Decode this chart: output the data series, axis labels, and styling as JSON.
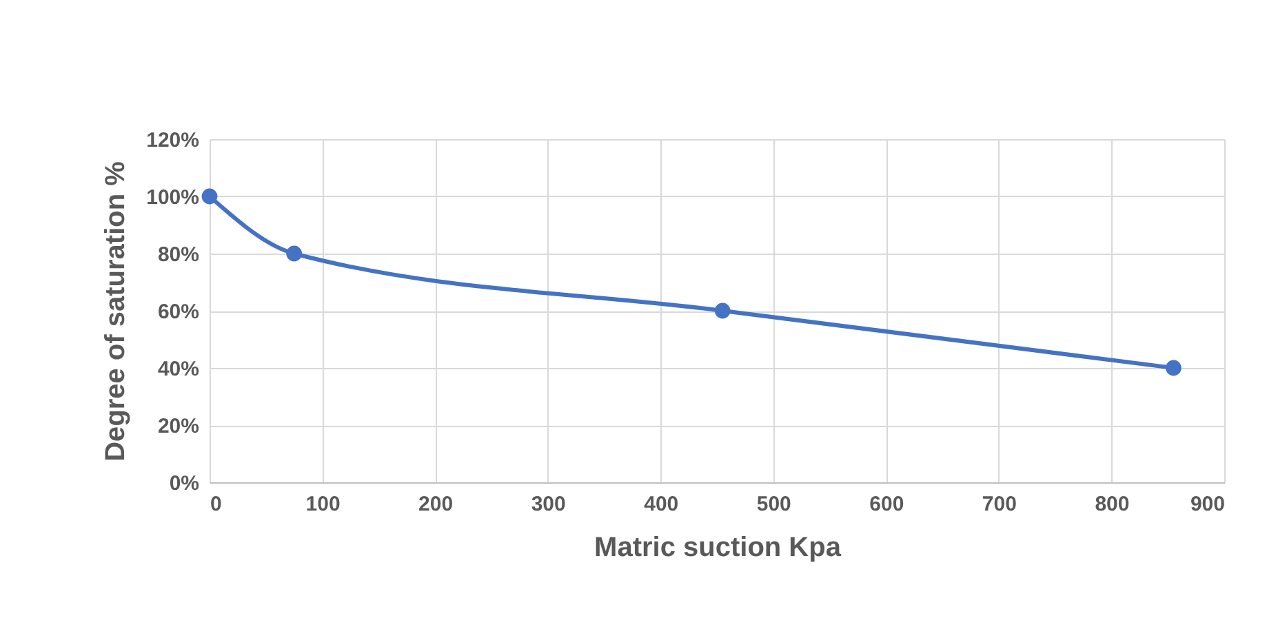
{
  "chart_data": {
    "type": "line",
    "xlabel": "Matric suction  Kpa",
    "ylabel": "Degree of saturation %",
    "x": [
      0,
      75,
      455,
      855
    ],
    "series": [
      {
        "color": "#4472c4",
        "values": [
          100,
          80,
          60,
          40
        ]
      }
    ],
    "xlim": [
      0,
      900
    ],
    "xticks": [
      0,
      100,
      200,
      300,
      400,
      500,
      600,
      700,
      800,
      900
    ],
    "ylim": [
      0,
      120
    ],
    "yticks": [
      {
        "value": 0,
        "label": "0%"
      },
      {
        "value": 20,
        "label": "20%"
      },
      {
        "value": 40,
        "label": "40%"
      },
      {
        "value": 60,
        "label": "60%"
      },
      {
        "value": 80,
        "label": "80%"
      },
      {
        "value": 100,
        "label": "100%"
      },
      {
        "value": 120,
        "label": "120%"
      }
    ],
    "grid": true,
    "marker": "circle",
    "line_style": "solid"
  }
}
